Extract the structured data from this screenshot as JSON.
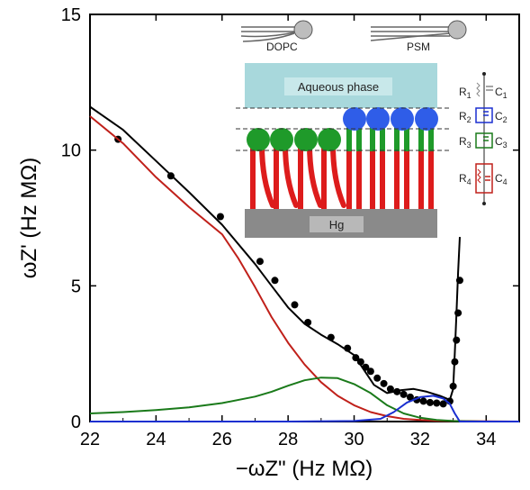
{
  "chart_data": {
    "type": "line",
    "xlabel": "−ωZ\" (Hz MΩ)",
    "ylabel": "ωZ' (Hz MΩ)",
    "xlim": [
      22,
      35
    ],
    "ylim": [
      0,
      15
    ],
    "xticks": [
      22,
      24,
      26,
      28,
      30,
      32,
      34
    ],
    "yticks": [
      0,
      5,
      10,
      15
    ],
    "grid": false,
    "series": [
      {
        "kind": "points",
        "color": "#000000",
        "x": [
          22.85,
          24.45,
          25.95,
          27.15,
          27.6,
          28.2,
          28.6,
          29.3,
          29.8,
          30.05,
          30.2,
          30.35,
          30.5,
          30.7,
          30.9,
          31.1,
          31.3,
          31.5,
          31.7,
          31.9,
          32.1,
          32.3,
          32.5,
          32.7,
          32.9,
          33.0,
          33.05,
          33.1,
          33.15,
          33.2
        ],
        "y": [
          10.4,
          9.05,
          7.55,
          5.9,
          5.2,
          4.3,
          3.65,
          3.1,
          2.7,
          2.35,
          2.2,
          2.0,
          1.85,
          1.6,
          1.4,
          1.2,
          1.1,
          1.0,
          0.9,
          0.8,
          0.75,
          0.7,
          0.68,
          0.65,
          0.75,
          1.3,
          2.2,
          3.0,
          4.0,
          5.2
        ]
      },
      {
        "kind": "line",
        "color": "#000000",
        "x": [
          22.0,
          23.0,
          24.0,
          25.0,
          26.0,
          27.0,
          27.5,
          28.0,
          28.5,
          29.0,
          29.5,
          30.0,
          30.3,
          30.6,
          31.0,
          31.4,
          31.8,
          32.2,
          32.6,
          32.9,
          33.0,
          33.05,
          33.1,
          33.15,
          33.2
        ],
        "y": [
          11.6,
          10.75,
          9.6,
          8.45,
          7.25,
          5.8,
          5.0,
          4.2,
          3.6,
          3.2,
          2.85,
          2.45,
          1.9,
          1.35,
          1.05,
          1.15,
          1.2,
          1.1,
          0.95,
          0.8,
          1.2,
          2.5,
          4.0,
          5.5,
          6.8
        ]
      },
      {
        "kind": "line",
        "color": "#c0201a",
        "x": [
          22.0,
          23.0,
          24.0,
          25.0,
          26.0,
          26.5,
          27.0,
          27.5,
          28.0,
          28.5,
          29.0,
          29.5,
          30.0,
          30.5,
          31.0,
          31.5,
          32.0,
          32.5,
          33.0,
          34.0,
          35.0
        ],
        "y": [
          11.25,
          10.25,
          9.0,
          7.9,
          6.9,
          6.0,
          4.95,
          3.85,
          2.9,
          2.1,
          1.45,
          0.95,
          0.6,
          0.35,
          0.2,
          0.1,
          0.06,
          0.03,
          0.02,
          0.01,
          0.0
        ]
      },
      {
        "kind": "line",
        "color": "#1a7a1a",
        "x": [
          22.0,
          23.0,
          24.0,
          25.0,
          26.0,
          27.0,
          27.5,
          28.0,
          28.5,
          29.0,
          29.5,
          30.0,
          30.5,
          31.0,
          31.5,
          32.0,
          32.5,
          33.0,
          34.0,
          35.0
        ],
        "y": [
          0.3,
          0.35,
          0.42,
          0.52,
          0.68,
          0.92,
          1.1,
          1.32,
          1.52,
          1.62,
          1.6,
          1.38,
          1.05,
          0.6,
          0.3,
          0.14,
          0.06,
          0.02,
          0.0,
          0.0
        ]
      },
      {
        "kind": "line",
        "color": "#1a2fd0",
        "x": [
          22.0,
          28.0,
          30.0,
          30.8,
          31.2,
          31.6,
          32.0,
          32.4,
          32.7,
          32.9,
          33.05,
          33.2,
          34.0,
          35.0
        ],
        "y": [
          0.0,
          0.0,
          0.02,
          0.1,
          0.35,
          0.7,
          0.9,
          0.95,
          0.85,
          0.65,
          0.3,
          0.0,
          0.0,
          0.0
        ]
      }
    ]
  },
  "inset": {
    "label_dopc": "DOPC",
    "label_psm": "PSM",
    "label_aqueous": "Aqueous phase",
    "label_hg": "Hg",
    "circuit": {
      "r1": "R",
      "r1_sub": "1",
      "c1": "C",
      "c1_sub": "1",
      "r2": "R",
      "r2_sub": "2",
      "c2": "C",
      "c2_sub": "2",
      "r3": "R",
      "r3_sub": "3",
      "c3": "C",
      "c3_sub": "3",
      "r4": "R",
      "r4_sub": "4",
      "c4": "C",
      "c4_sub": "4"
    },
    "colors": {
      "aqueous": "#a8d8dc",
      "tail": "#dd1c1c",
      "dopc_head": "#1f9a2a",
      "psm_head": "#2f5de8",
      "hg": "#8a8a8a"
    }
  }
}
